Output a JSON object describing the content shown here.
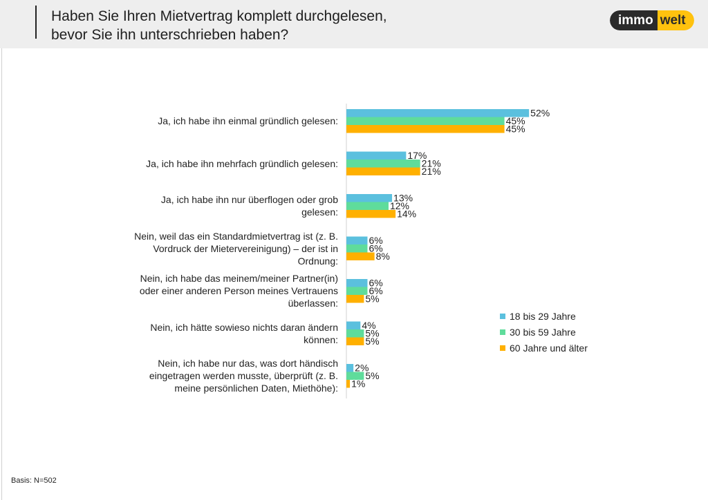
{
  "header": {
    "title_line1": "Haben Sie Ihren Mietvertrag komplett durchgelesen,",
    "title_line2": "bevor Sie ihn unterschrieben haben?",
    "logo_part1": "immo",
    "logo_part2": "welt"
  },
  "footer": {
    "basis": "Basis: N=502"
  },
  "chart_data": {
    "type": "bar",
    "orientation": "horizontal",
    "title": "Haben Sie Ihren Mietvertrag komplett durchgelesen, bevor Sie ihn unterschrieben haben?",
    "categories": [
      [
        "Ja, ich habe ihn einmal gründlich gelesen:"
      ],
      [
        "Ja, ich habe ihn mehrfach gründlich gelesen:"
      ],
      [
        "Ja, ich habe ihn nur überflogen oder grob",
        "gelesen:"
      ],
      [
        "Nein, weil das ein Standardmietvertrag ist (z. B.",
        "Vordruck der Mietervereinigung) – der ist in",
        "Ordnung:"
      ],
      [
        "Nein, ich habe das meinem/meiner Partner(in)",
        "oder einer anderen Person meines Vertrauens",
        "überlassen:"
      ],
      [
        "Nein, ich hätte sowieso nichts daran ändern",
        "können:"
      ],
      [
        "Nein, ich habe nur das, was dort händisch",
        "eingetragen werden musste, überprüft (z. B.",
        "meine persönlichen Daten, Miethöhe):"
      ]
    ],
    "series": [
      {
        "name": "18 bis 29 Jahre",
        "color": "#5bc0de",
        "values": [
          52,
          17,
          13,
          6,
          6,
          4,
          2
        ]
      },
      {
        "name": "30 bis 59 Jahre",
        "color": "#5fdc9b",
        "values": [
          45,
          21,
          12,
          6,
          6,
          5,
          5
        ]
      },
      {
        "name": "60 Jahre und älter",
        "color": "#ffb000",
        "values": [
          45,
          21,
          14,
          8,
          5,
          5,
          1
        ]
      }
    ],
    "value_suffix": "%",
    "xlim": [
      0,
      100
    ],
    "legend": "right",
    "grid": false
  }
}
